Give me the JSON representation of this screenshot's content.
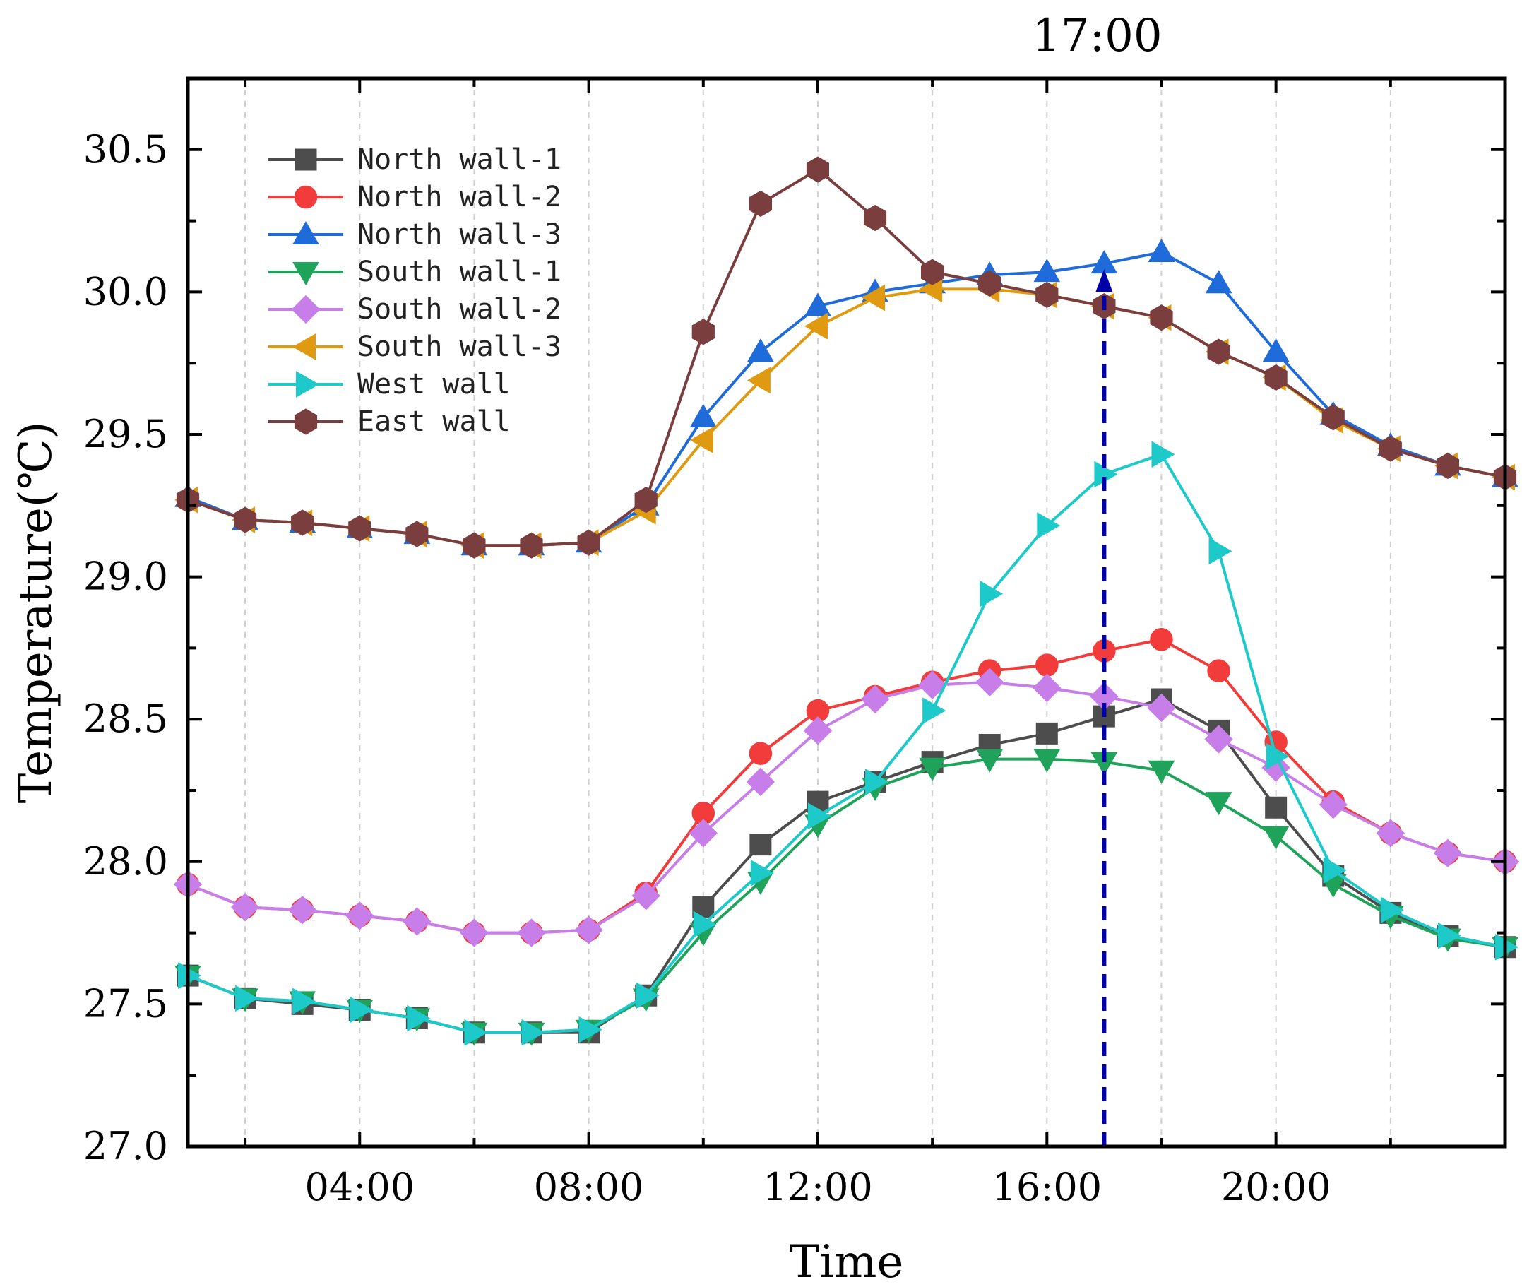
{
  "chart_data": {
    "type": "line",
    "xlabel": "Time",
    "ylabel": "Temperature(℃)",
    "xlim": [
      1,
      24
    ],
    "ylim": [
      27.0,
      30.75
    ],
    "x": [
      1,
      2,
      3,
      4,
      5,
      6,
      7,
      8,
      9,
      10,
      11,
      12,
      13,
      14,
      15,
      16,
      17,
      18,
      19,
      20,
      21,
      22,
      23,
      24
    ],
    "x_ticks": [
      {
        "value": 4,
        "label": "04:00"
      },
      {
        "value": 8,
        "label": "08:00"
      },
      {
        "value": 12,
        "label": "12:00"
      },
      {
        "value": 16,
        "label": "16:00"
      },
      {
        "value": 20,
        "label": "20:00"
      }
    ],
    "y_ticks": [
      {
        "value": 27.0,
        "label": "27.0"
      },
      {
        "value": 27.5,
        "label": "27.5"
      },
      {
        "value": 28.0,
        "label": "28.0"
      },
      {
        "value": 28.5,
        "label": "28.5"
      },
      {
        "value": 29.0,
        "label": "29.0"
      },
      {
        "value": 29.5,
        "label": "29.5"
      },
      {
        "value": 30.0,
        "label": "30.0"
      },
      {
        "value": 30.5,
        "label": "30.5"
      }
    ],
    "legend_position": "top-left",
    "grid": "vertical dashed",
    "annotation": {
      "x": 17,
      "label": "17:00",
      "color": "#0000aa",
      "y_top": 30.08
    },
    "series": [
      {
        "name": "North wall-1",
        "color": "#4d4d4d",
        "marker": "square",
        "values": [
          27.6,
          27.52,
          27.5,
          27.48,
          27.45,
          27.4,
          27.4,
          27.4,
          27.53,
          27.84,
          28.06,
          28.21,
          28.28,
          28.35,
          28.41,
          28.45,
          28.51,
          28.57,
          28.46,
          28.19,
          27.95,
          27.82,
          27.74,
          27.7
        ]
      },
      {
        "name": "North wall-2",
        "color": "#f23b3b",
        "marker": "circle",
        "values": [
          27.92,
          27.84,
          27.83,
          27.81,
          27.79,
          27.75,
          27.75,
          27.76,
          27.89,
          28.17,
          28.38,
          28.53,
          28.58,
          28.63,
          28.67,
          28.69,
          28.74,
          28.78,
          28.67,
          28.42,
          28.21,
          28.1,
          28.03,
          28.0
        ]
      },
      {
        "name": "North wall-3",
        "color": "#1f6bd9",
        "marker": "triangle-up",
        "values": [
          29.28,
          29.2,
          29.19,
          29.17,
          29.15,
          29.11,
          29.11,
          29.12,
          29.25,
          29.56,
          29.79,
          29.95,
          30.0,
          30.03,
          30.06,
          30.07,
          30.1,
          30.14,
          30.03,
          29.79,
          29.57,
          29.46,
          29.39,
          29.35
        ]
      },
      {
        "name": "South wall-1",
        "color": "#1fa35a",
        "marker": "triangle-down",
        "values": [
          27.6,
          27.52,
          27.51,
          27.48,
          27.45,
          27.4,
          27.4,
          27.41,
          27.52,
          27.75,
          27.93,
          28.13,
          28.26,
          28.33,
          28.36,
          28.36,
          28.35,
          28.32,
          28.21,
          28.09,
          27.92,
          27.81,
          27.73,
          27.7
        ]
      },
      {
        "name": "South wall-2",
        "color": "#c77ee8",
        "marker": "diamond",
        "values": [
          27.92,
          27.84,
          27.83,
          27.81,
          27.79,
          27.75,
          27.75,
          27.76,
          27.88,
          28.1,
          28.28,
          28.46,
          28.57,
          28.62,
          28.63,
          28.61,
          28.58,
          28.54,
          28.43,
          28.33,
          28.2,
          28.1,
          28.03,
          28.0
        ]
      },
      {
        "name": "South wall-3",
        "color": "#e09a12",
        "marker": "triangle-left",
        "values": [
          29.27,
          29.2,
          29.19,
          29.17,
          29.15,
          29.11,
          29.11,
          29.12,
          29.23,
          29.48,
          29.69,
          29.88,
          29.98,
          30.01,
          30.01,
          29.99,
          29.95,
          29.91,
          29.79,
          29.7,
          29.55,
          29.45,
          29.39,
          29.35
        ]
      },
      {
        "name": "West wall",
        "color": "#1ec9c9",
        "marker": "triangle-right",
        "values": [
          27.6,
          27.52,
          27.51,
          27.48,
          27.45,
          27.4,
          27.4,
          27.41,
          27.53,
          27.78,
          27.96,
          28.16,
          28.28,
          28.53,
          28.94,
          29.18,
          29.36,
          29.43,
          29.09,
          28.37,
          27.97,
          27.83,
          27.74,
          27.7
        ]
      },
      {
        "name": "East wall",
        "color": "#7a3e3e",
        "marker": "hexagon",
        "values": [
          29.27,
          29.2,
          29.19,
          29.17,
          29.15,
          29.11,
          29.11,
          29.12,
          29.27,
          29.86,
          30.31,
          30.43,
          30.26,
          30.07,
          30.03,
          29.99,
          29.95,
          29.91,
          29.79,
          29.7,
          29.56,
          29.45,
          29.39,
          29.35
        ]
      }
    ]
  }
}
